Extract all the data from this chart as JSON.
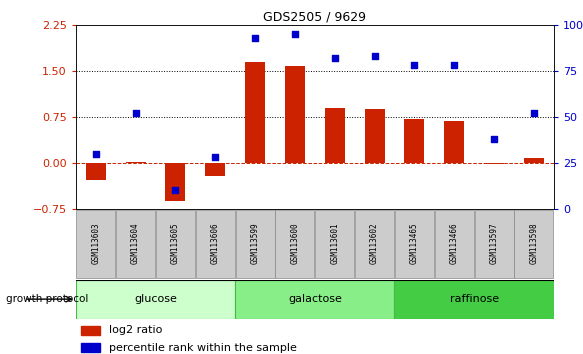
{
  "title": "GDS2505 / 9629",
  "categories": [
    "GSM113603",
    "GSM113604",
    "GSM113605",
    "GSM113606",
    "GSM113599",
    "GSM113600",
    "GSM113601",
    "GSM113602",
    "GSM113465",
    "GSM113466",
    "GSM113597",
    "GSM113598"
  ],
  "log2_ratio": [
    -0.28,
    0.01,
    -0.62,
    -0.22,
    1.65,
    1.58,
    0.9,
    0.88,
    0.72,
    0.69,
    -0.02,
    0.08
  ],
  "pct_rank": [
    30,
    52,
    10,
    28,
    93,
    95,
    82,
    83,
    78,
    78,
    38,
    52
  ],
  "groups": [
    {
      "label": "glucose",
      "start": 0,
      "end": 4,
      "color": "#ccffcc",
      "edge": "#44bb44"
    },
    {
      "label": "galactose",
      "start": 4,
      "end": 8,
      "color": "#88ee88",
      "edge": "#44bb44"
    },
    {
      "label": "raffinose",
      "start": 8,
      "end": 12,
      "color": "#44cc44",
      "edge": "#44bb44"
    }
  ],
  "bar_color": "#cc2200",
  "dot_color": "#0000cc",
  "left_ylim": [
    -0.75,
    2.25
  ],
  "right_ylim": [
    0,
    100
  ],
  "left_yticks": [
    -0.75,
    0,
    0.75,
    1.5,
    2.25
  ],
  "right_yticks": [
    0,
    25,
    50,
    75,
    100
  ],
  "hlines": [
    0,
    0.75,
    1.5
  ],
  "hline_styles": [
    "dashed",
    "dotted",
    "dotted"
  ],
  "hline_colors": [
    "#cc2200",
    "black",
    "black"
  ],
  "legend_log2": "log2 ratio",
  "legend_pct": "percentile rank within the sample",
  "growth_label": "growth protocol",
  "label_bg": "#cccccc",
  "label_edge": "#888888"
}
